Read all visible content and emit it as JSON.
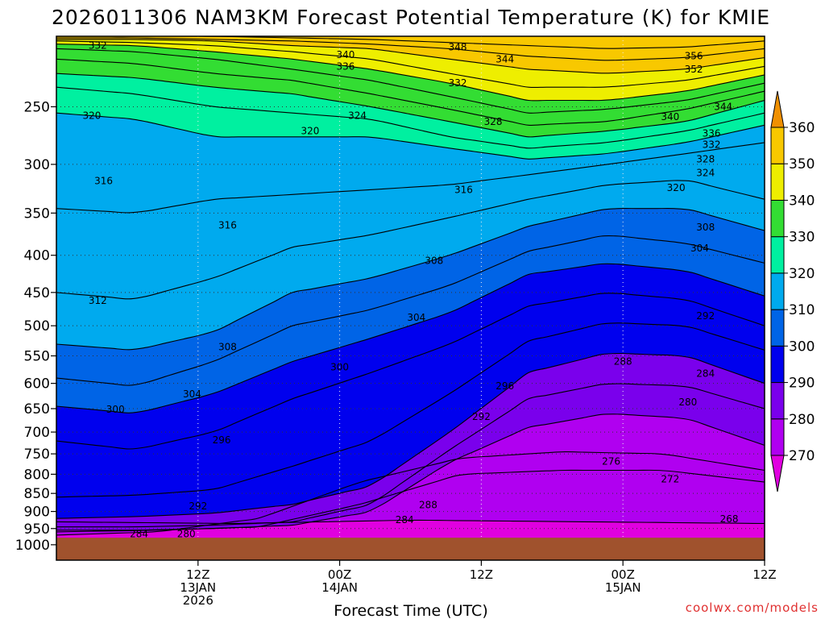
{
  "chart_data": {
    "type": "heatmap",
    "title": "2026011306 NAM3KM Forecast Potential Temperature (K) for KMIE",
    "xlabel": "Forecast Time (UTC)",
    "ylabel": "",
    "credit": "coolwx.com/models",
    "y_scale": "log-pressure",
    "y_reversed": true,
    "y_ticks": [
      250,
      300,
      350,
      400,
      450,
      500,
      550,
      600,
      650,
      700,
      750,
      800,
      850,
      900,
      950,
      1000
    ],
    "y_tick_labels": [
      "250",
      "300",
      "350",
      "400",
      "450",
      "500",
      "550",
      "600",
      "650",
      "700",
      "750",
      "800",
      "850",
      "900",
      "950",
      "1000"
    ],
    "x_range_hours": [
      6,
      66
    ],
    "x_ticks": [
      {
        "hour": 18,
        "lines": [
          "12Z",
          "13JAN",
          "2026"
        ]
      },
      {
        "hour": 30,
        "lines": [
          "00Z",
          "14JAN"
        ]
      },
      {
        "hour": 42,
        "lines": [
          "12Z"
        ]
      },
      {
        "hour": 54,
        "lines": [
          "00Z",
          "15JAN"
        ]
      },
      {
        "hour": 66,
        "lines": [
          "12Z"
        ]
      }
    ],
    "colorbar": {
      "levels": [
        270,
        280,
        290,
        300,
        310,
        320,
        330,
        340,
        350,
        360
      ],
      "labels": [
        "270",
        "280",
        "290",
        "300",
        "310",
        "320",
        "330",
        "340",
        "350",
        "360"
      ],
      "colors": [
        "#e000e0",
        "#b000f0",
        "#7a00ec",
        "#0000ee",
        "#0064e6",
        "#00aaee",
        "#00f0a0",
        "#33dd33",
        "#eeee00",
        "#f8c800",
        "#f09000"
      ]
    },
    "contour_interval": 4,
    "isentropes": [
      {
        "theta": 268,
        "p": [
          930,
          935,
          925,
          930,
          935
        ]
      },
      {
        "theta": 272,
        "p": [
          960,
          955,
          945,
          880,
          800,
          790,
          790,
          820
        ]
      },
      {
        "theta": 276,
        "p": [
          970,
          960,
          920,
          820,
          760,
          745,
          750,
          790
        ]
      },
      {
        "theta": 280,
        "p": [
          955,
          955,
          950,
          940,
          900,
          770,
          690,
          660,
          670,
          730
        ]
      },
      {
        "theta": 284,
        "p": [
          945,
          945,
          940,
          930,
          880,
          740,
          630,
          600,
          605,
          650
        ]
      },
      {
        "theta": 288,
        "p": [
          920,
          915,
          905,
          880,
          830,
          700,
          580,
          545,
          550,
          600
        ]
      },
      {
        "theta": 292,
        "p": [
          860,
          855,
          840,
          780,
          720,
          620,
          525,
          495,
          500,
          540
        ]
      },
      {
        "theta": 296,
        "p": [
          720,
          740,
          700,
          630,
          580,
          530,
          470,
          450,
          460,
          500
        ]
      },
      {
        "theta": 300,
        "p": [
          645,
          660,
          620,
          560,
          520,
          480,
          425,
          410,
          420,
          455
        ]
      },
      {
        "theta": 304,
        "p": [
          590,
          605,
          560,
          500,
          475,
          440,
          395,
          375,
          385,
          410
        ]
      },
      {
        "theta": 308,
        "p": [
          530,
          540,
          510,
          450,
          430,
          400,
          365,
          345,
          345,
          370
        ]
      },
      {
        "theta": 312,
        "p": [
          450,
          460,
          430,
          390,
          375,
          355,
          335,
          320,
          315,
          335
        ]
      },
      {
        "theta": 316,
        "p": [
          345,
          350,
          335,
          330,
          325,
          320,
          310,
          300,
          290,
          280
        ]
      },
      {
        "theta": 320,
        "p": [
          255,
          260,
          275,
          275,
          275,
          285,
          295,
          290,
          280,
          265
        ]
      },
      {
        "theta": 324,
        "p": [
          235,
          240,
          250,
          255,
          260,
          275,
          285,
          280,
          270,
          255
        ]
      },
      {
        "theta": 328,
        "p": [
          225,
          228,
          235,
          240,
          250,
          262,
          275,
          270,
          262,
          245
        ]
      },
      {
        "theta": 332,
        "p": [
          215,
          218,
          225,
          230,
          240,
          252,
          265,
          262,
          252,
          238
        ]
      },
      {
        "theta": 336,
        "p": [
          208,
          210,
          215,
          222,
          230,
          242,
          255,
          252,
          245,
          232
        ]
      },
      {
        "theta": 340,
        "p": [
          205,
          206,
          210,
          215,
          222,
          232,
          245,
          245,
          238,
          226
        ]
      },
      {
        "theta": 344,
        "p": [
          203,
          204,
          206,
          210,
          215,
          225,
          235,
          235,
          230,
          220
        ]
      },
      {
        "theta": 348,
        "p": [
          202,
          202,
          203,
          206,
          208,
          215,
          222,
          225,
          222,
          214
        ]
      },
      {
        "theta": 352,
        "p": [
          201,
          201,
          202,
          203,
          205,
          208,
          213,
          216,
          214,
          208
        ]
      },
      {
        "theta": 356,
        "p": [
          200,
          200,
          200,
          201,
          202,
          204,
          206,
          208,
          207,
          203
        ]
      }
    ],
    "contour_labels": [
      {
        "text": "332",
        "hour": 9.5,
        "p": 206
      },
      {
        "text": "348",
        "hour": 40,
        "p": 207
      },
      {
        "text": "340",
        "hour": 30.5,
        "p": 212
      },
      {
        "text": "344",
        "hour": 44,
        "p": 215
      },
      {
        "text": "356",
        "hour": 60,
        "p": 213
      },
      {
        "text": "336",
        "hour": 30.5,
        "p": 220
      },
      {
        "text": "352",
        "hour": 60,
        "p": 222
      },
      {
        "text": "332",
        "hour": 40,
        "p": 232
      },
      {
        "text": "320",
        "hour": 9,
        "p": 257
      },
      {
        "text": "324",
        "hour": 31.5,
        "p": 257
      },
      {
        "text": "328",
        "hour": 43,
        "p": 262
      },
      {
        "text": "340",
        "hour": 58,
        "p": 258
      },
      {
        "text": "344",
        "hour": 62.5,
        "p": 250
      },
      {
        "text": "320",
        "hour": 27.5,
        "p": 270
      },
      {
        "text": "336",
        "hour": 61.5,
        "p": 272
      },
      {
        "text": "332",
        "hour": 61.5,
        "p": 282
      },
      {
        "text": "328",
        "hour": 61,
        "p": 295
      },
      {
        "text": "324",
        "hour": 61,
        "p": 308
      },
      {
        "text": "320",
        "hour": 58.5,
        "p": 323
      },
      {
        "text": "316",
        "hour": 10,
        "p": 316
      },
      {
        "text": "316",
        "hour": 40.5,
        "p": 325
      },
      {
        "text": "316",
        "hour": 20.5,
        "p": 364
      },
      {
        "text": "308",
        "hour": 61,
        "p": 366
      },
      {
        "text": "304",
        "hour": 60.5,
        "p": 391
      },
      {
        "text": "308",
        "hour": 38,
        "p": 407
      },
      {
        "text": "312",
        "hour": 9.5,
        "p": 462
      },
      {
        "text": "304",
        "hour": 36.5,
        "p": 487
      },
      {
        "text": "292",
        "hour": 61,
        "p": 485
      },
      {
        "text": "308",
        "hour": 20.5,
        "p": 535
      },
      {
        "text": "300",
        "hour": 30,
        "p": 570
      },
      {
        "text": "288",
        "hour": 54,
        "p": 560
      },
      {
        "text": "284",
        "hour": 61,
        "p": 582
      },
      {
        "text": "296",
        "hour": 44,
        "p": 605
      },
      {
        "text": "304",
        "hour": 17.5,
        "p": 621
      },
      {
        "text": "280",
        "hour": 59.5,
        "p": 637
      },
      {
        "text": "300",
        "hour": 11,
        "p": 652
      },
      {
        "text": "292",
        "hour": 42,
        "p": 667
      },
      {
        "text": "296",
        "hour": 20,
        "p": 718
      },
      {
        "text": "276",
        "hour": 53,
        "p": 768
      },
      {
        "text": "272",
        "hour": 58,
        "p": 813
      },
      {
        "text": "288",
        "hour": 37.5,
        "p": 882
      },
      {
        "text": "292",
        "hour": 18,
        "p": 885
      },
      {
        "text": "268",
        "hour": 63,
        "p": 922
      },
      {
        "text": "284",
        "hour": 35.5,
        "p": 924
      },
      {
        "text": "284",
        "hour": 13,
        "p": 967
      },
      {
        "text": "280",
        "hour": 17,
        "p": 967
      }
    ],
    "ground": {
      "p_top": 978,
      "color": "#a0522d"
    }
  }
}
